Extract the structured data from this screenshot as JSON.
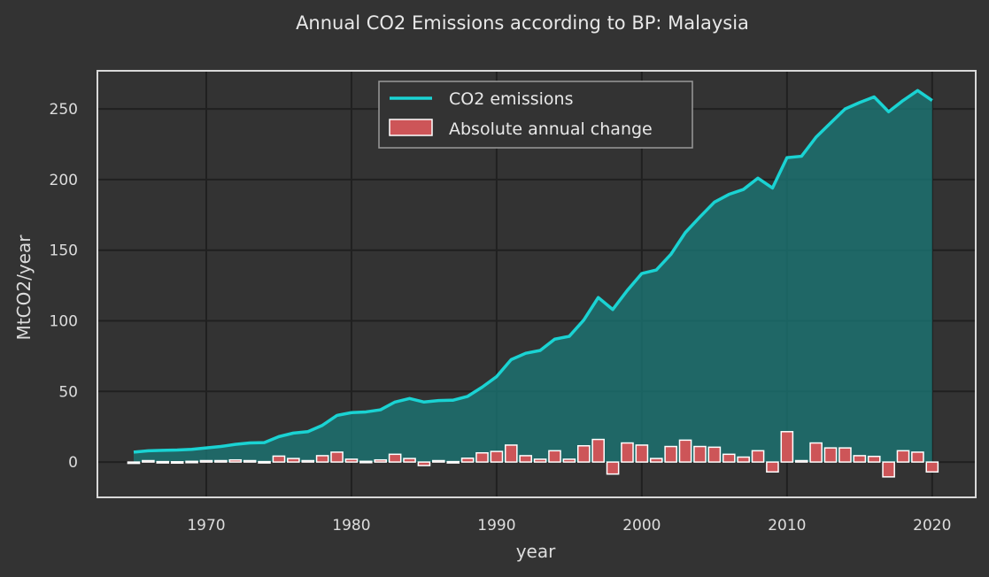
{
  "chart_data": {
    "type": "line",
    "title": "Annual CO2 Emissions according to BP: Malaysia",
    "xlabel": "year",
    "ylabel": "MtCO2/year",
    "xlim": [
      1962.5,
      2023
    ],
    "ylim": [
      -25,
      277
    ],
    "xticks": [
      1970,
      1980,
      1990,
      2000,
      2010,
      2020
    ],
    "yticks": [
      0,
      50,
      100,
      150,
      200,
      250
    ],
    "grid": true,
    "legend_position": "top-center",
    "colors": {
      "background": "#333333",
      "line": "#1ad3d3",
      "area_fill": "#1a7a78",
      "bar_fill": "#cd5558",
      "bar_edge": "#ffffff",
      "grid": "#202020",
      "frame": "#d9d9d9"
    },
    "x": [
      1965,
      1966,
      1967,
      1968,
      1969,
      1970,
      1971,
      1972,
      1973,
      1974,
      1975,
      1976,
      1977,
      1978,
      1979,
      1980,
      1981,
      1982,
      1983,
      1984,
      1985,
      1986,
      1987,
      1988,
      1989,
      1990,
      1991,
      1992,
      1993,
      1994,
      1995,
      1996,
      1997,
      1998,
      1999,
      2000,
      2001,
      2002,
      2003,
      2004,
      2005,
      2006,
      2007,
      2008,
      2009,
      2010,
      2011,
      2012,
      2013,
      2014,
      2015,
      2016,
      2017,
      2018,
      2019,
      2020
    ],
    "series": [
      {
        "name": "CO2 emissions",
        "type": "line",
        "values": [
          7,
          8,
          8.3,
          8.5,
          9,
          10,
          11,
          12.5,
          13.5,
          13.8,
          18,
          20.5,
          21.5,
          26,
          33,
          35,
          35.5,
          37,
          42.5,
          45,
          42.5,
          43.5,
          43.8,
          46.5,
          53,
          60.5,
          72.5,
          77,
          79,
          87,
          89,
          100.5,
          116.5,
          108,
          121.5,
          133.5,
          136,
          147,
          162.5,
          173.5,
          184,
          189.5,
          193,
          201,
          194,
          215.5,
          216.5,
          230,
          240,
          250,
          254.5,
          258.5,
          248,
          256,
          263,
          256
        ]
      },
      {
        "name": "Absolute annual change",
        "type": "bar",
        "values": [
          0,
          1,
          0.3,
          0.2,
          0.5,
          1,
          1,
          1.5,
          1,
          0.3,
          4.2,
          2.5,
          1,
          4.5,
          7,
          2,
          0.5,
          1.5,
          5.5,
          2.5,
          -2.5,
          1,
          0.3,
          2.7,
          6.5,
          7.5,
          12,
          4.5,
          2,
          8,
          2,
          11.5,
          16,
          -8.5,
          13.5,
          12,
          2.5,
          11,
          15.5,
          11,
          10.5,
          5.5,
          3.5,
          8,
          -7,
          21.5,
          1,
          13.5,
          10,
          10,
          4.5,
          4,
          -10.5,
          8,
          7,
          -7
        ]
      }
    ]
  }
}
